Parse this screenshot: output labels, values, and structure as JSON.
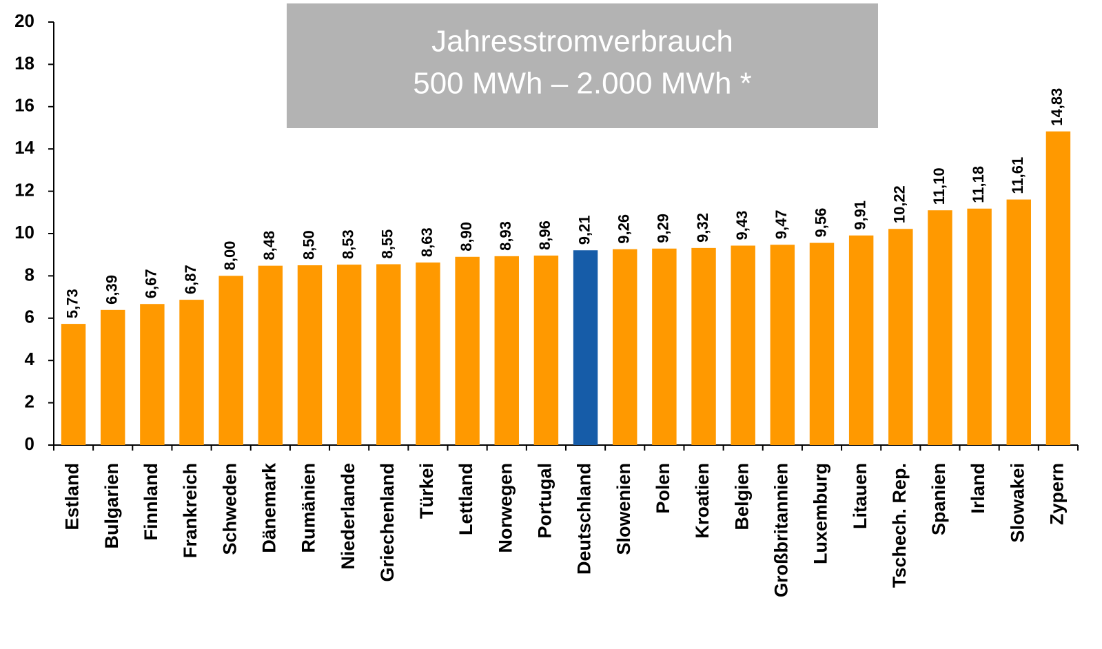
{
  "chart_data": {
    "type": "bar",
    "title": "Jahresstromverbrauch",
    "subtitle": "500 MWh – 2.000 MWh *",
    "categories": [
      "Estland",
      "Bulgarien",
      "Finnland",
      "Frankreich",
      "Schweden",
      "Dänemark",
      "Rumänien",
      "Niederlande",
      "Griechenland",
      "Türkei",
      "Lettland",
      "Norwegen",
      "Portugal",
      "Deutschland",
      "Slowenien",
      "Polen",
      "Kroatien",
      "Belgien",
      "Großbritannien",
      "Luxemburg",
      "Litauen",
      "Tschech. Rep.",
      "Spanien",
      "Irland",
      "Slowakei",
      "Zypern"
    ],
    "values": [
      5.73,
      6.39,
      6.67,
      6.87,
      8.0,
      8.48,
      8.5,
      8.53,
      8.55,
      8.63,
      8.9,
      8.93,
      8.96,
      9.21,
      9.26,
      9.29,
      9.32,
      9.43,
      9.47,
      9.56,
      9.91,
      10.22,
      11.1,
      11.18,
      11.61,
      14.83
    ],
    "value_labels": [
      "5,73",
      "6,39",
      "6,67",
      "6,87",
      "8,00",
      "8,48",
      "8,50",
      "8,53",
      "8,55",
      "8,63",
      "8,90",
      "8,93",
      "8,96",
      "9,21",
      "9,26",
      "9,29",
      "9,32",
      "9,43",
      "9,47",
      "9,56",
      "9,91",
      "10,22",
      "11,10",
      "11,18",
      "11,61",
      "14,83"
    ],
    "colors": [
      "#ff9900",
      "#ff9900",
      "#ff9900",
      "#ff9900",
      "#ff9900",
      "#ff9900",
      "#ff9900",
      "#ff9900",
      "#ff9900",
      "#ff9900",
      "#ff9900",
      "#ff9900",
      "#ff9900",
      "#165ca8",
      "#ff9900",
      "#ff9900",
      "#ff9900",
      "#ff9900",
      "#ff9900",
      "#ff9900",
      "#ff9900",
      "#ff9900",
      "#ff9900",
      "#ff9900",
      "#ff9900",
      "#ff9900"
    ],
    "ylim": [
      0,
      20
    ],
    "yticks": [
      0,
      2,
      4,
      6,
      8,
      10,
      12,
      14,
      16,
      18,
      20
    ],
    "grid": false
  }
}
